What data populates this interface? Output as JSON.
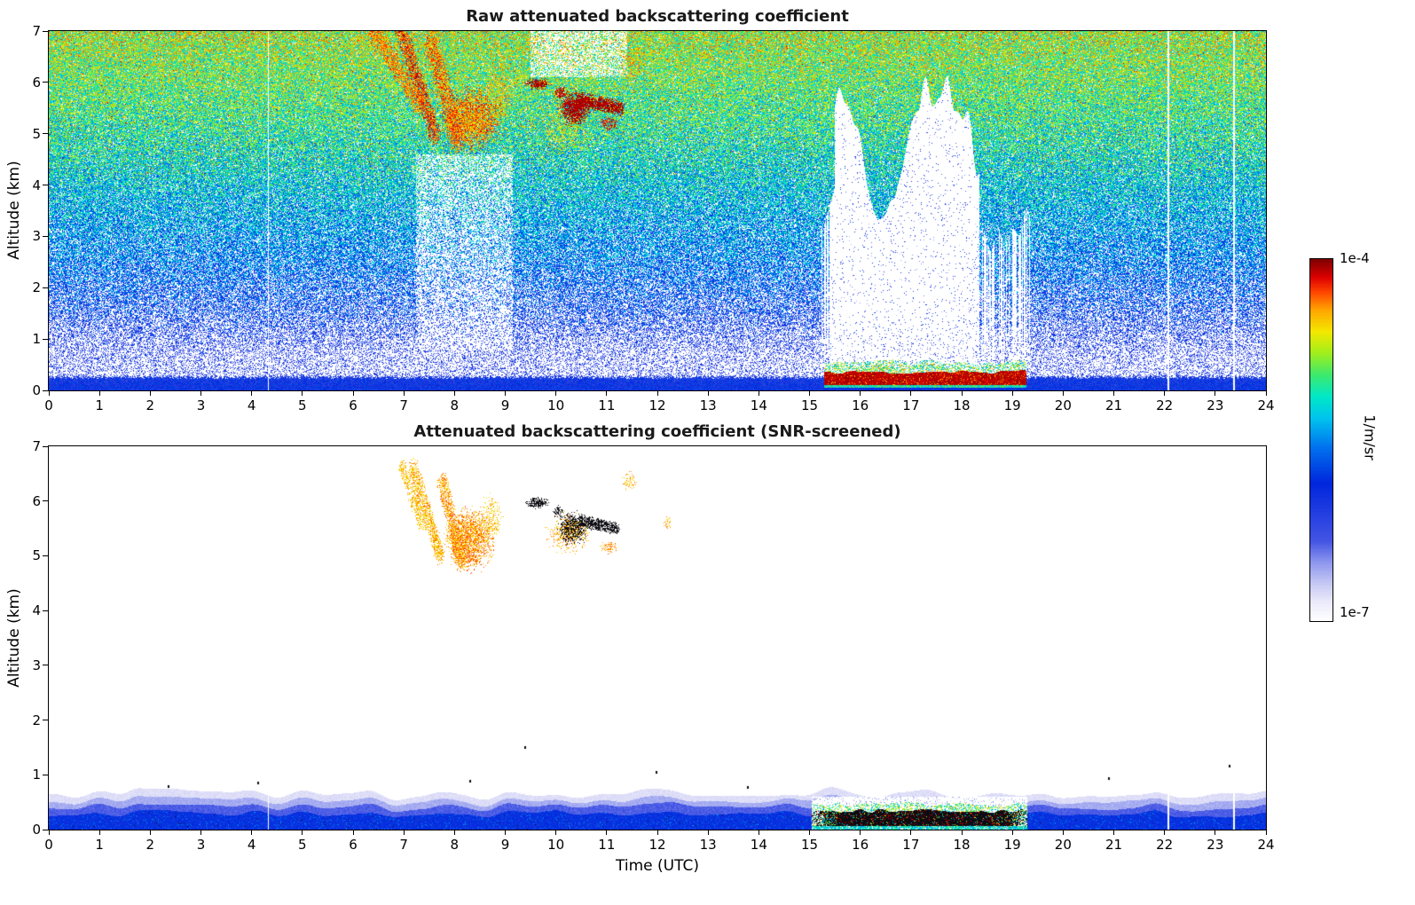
{
  "figure": {
    "background": "#ffffff",
    "colorbar": {
      "label": "1/m/sr",
      "max_label": "1e-4",
      "min_label": "1e-7",
      "stops": [
        [
          0,
          "#ffffff"
        ],
        [
          0.05,
          "#ecebfb"
        ],
        [
          0.1,
          "#c8caf4"
        ],
        [
          0.16,
          "#8e97ee"
        ],
        [
          0.22,
          "#4455e4"
        ],
        [
          0.38,
          "#0026dd"
        ],
        [
          0.48,
          "#0072ee"
        ],
        [
          0.56,
          "#00c3ee"
        ],
        [
          0.62,
          "#00e8c8"
        ],
        [
          0.68,
          "#3ce96e"
        ],
        [
          0.74,
          "#a0ef1c"
        ],
        [
          0.8,
          "#f4e800"
        ],
        [
          0.86,
          "#ffa500"
        ],
        [
          0.91,
          "#ff4400"
        ],
        [
          0.95,
          "#dd0000"
        ],
        [
          1,
          "#7f0000"
        ]
      ]
    }
  },
  "chart_data": [
    {
      "type": "heatmap",
      "title": "Raw attenuated backscattering coefficient",
      "xlabel": "",
      "ylabel": "Altitude (km)",
      "xlim": [
        0,
        24
      ],
      "ylim": [
        0,
        7
      ],
      "xticks": [
        0,
        1,
        2,
        3,
        4,
        5,
        6,
        7,
        8,
        9,
        10,
        11,
        12,
        13,
        14,
        15,
        16,
        17,
        18,
        19,
        20,
        21,
        22,
        23,
        24
      ],
      "yticks": [
        0,
        1,
        2,
        3,
        4,
        5,
        6,
        7
      ],
      "units": "1/m/sr",
      "value_range": [
        "1e-7",
        "1e-4"
      ],
      "legend": "shared colorbar right",
      "render": {
        "seed": 11,
        "style": "raw",
        "gaps": [
          4.33,
          22.08,
          23.37
        ],
        "hot_fleck_p": 0.03,
        "noise_profile": [
          {
            "z": 0.0,
            "p": 1.0,
            "v": 0.36,
            "s": 0.08
          },
          {
            "z": 0.22,
            "p": 1.0,
            "v": 0.34,
            "s": 0.1
          },
          {
            "z": 0.3,
            "p": 0.3,
            "v": 0.28,
            "s": 0.14
          },
          {
            "z": 0.7,
            "p": 0.32,
            "v": 0.28,
            "s": 0.14
          },
          {
            "z": 1.5,
            "p": 0.55,
            "v": 0.38,
            "s": 0.16
          },
          {
            "z": 2.5,
            "p": 0.72,
            "v": 0.47,
            "s": 0.16
          },
          {
            "z": 4.0,
            "p": 0.86,
            "v": 0.57,
            "s": 0.16
          },
          {
            "z": 5.5,
            "p": 0.94,
            "v": 0.66,
            "s": 0.17
          },
          {
            "z": 7.0,
            "p": 0.97,
            "v": 0.74,
            "s": 0.18
          }
        ],
        "shadows": [
          {
            "t0": 7.25,
            "t1": 9.15,
            "z0": 0.8,
            "z1": 4.6,
            "f": 0.55
          },
          {
            "t0": 9.5,
            "t1": 11.4,
            "z0": 6.1,
            "z1": 7.0,
            "f": 0.5
          }
        ],
        "attenuation": {
          "t0": 15.2,
          "t1": 19.35,
          "t_full0": 15.5,
          "t_full1": 18.35,
          "z_base": 0.42,
          "h_min": 2.6,
          "h_max": 6.4
        },
        "low_cloud": {
          "t0": 15.28,
          "t1": 19.28,
          "z_core0": 0.1,
          "z_core1": 0.32,
          "z_top": 0.44
        },
        "features": [
          {
            "kind": "streak",
            "x0": 6.38,
            "y0": 7.05,
            "x1": 7.28,
            "y1": 5.62,
            "w": 0.26,
            "v0": 0.8,
            "v1": 0.95,
            "d": 0.7
          },
          {
            "kind": "streak",
            "x0": 6.95,
            "y0": 7.0,
            "x1": 7.6,
            "y1": 5.05,
            "w": 0.24,
            "v0": 0.84,
            "v1": 1.0,
            "d": 0.75
          },
          {
            "kind": "streak",
            "x0": 7.55,
            "y0": 6.7,
            "x1": 8.05,
            "y1": 4.95,
            "w": 0.3,
            "v0": 0.8,
            "v1": 0.97,
            "d": 0.78
          },
          {
            "kind": "blob",
            "cx": 8.35,
            "cy": 5.3,
            "rx": 0.55,
            "ry": 0.52,
            "v0": 0.78,
            "v1": 0.97,
            "d": 0.85
          },
          {
            "kind": "blob",
            "cx": 8.9,
            "cy": 5.75,
            "rx": 0.25,
            "ry": 0.45,
            "v0": 0.75,
            "v1": 0.9,
            "d": 0.45
          },
          {
            "kind": "blob",
            "cx": 9.3,
            "cy": 6.1,
            "rx": 0.15,
            "ry": 0.2,
            "v0": 0.72,
            "v1": 0.88,
            "d": 0.35
          },
          {
            "kind": "blob",
            "cx": 9.63,
            "cy": 5.97,
            "rx": 0.22,
            "ry": 0.1,
            "v0": 0.95,
            "v1": 1.0,
            "d": 0.9
          },
          {
            "kind": "blob",
            "cx": 10.08,
            "cy": 5.8,
            "rx": 0.12,
            "ry": 0.12,
            "v0": 0.92,
            "v1": 1.0,
            "d": 0.8
          },
          {
            "kind": "blob",
            "cx": 10.36,
            "cy": 5.5,
            "rx": 0.28,
            "ry": 0.3,
            "v0": 0.95,
            "v1": 1.0,
            "d": 0.9
          },
          {
            "kind": "streak",
            "x0": 10.5,
            "y0": 5.65,
            "x1": 11.28,
            "y1": 5.5,
            "w": 0.14,
            "v0": 0.95,
            "v1": 1.0,
            "d": 0.85
          },
          {
            "kind": "blob",
            "cx": 11.05,
            "cy": 5.2,
            "rx": 0.18,
            "ry": 0.12,
            "v0": 0.9,
            "v1": 1.0,
            "d": 0.6
          },
          {
            "kind": "blob",
            "cx": 10.15,
            "cy": 5.05,
            "rx": 0.5,
            "ry": 0.4,
            "v0": 0.72,
            "v1": 0.88,
            "d": 0.3
          },
          {
            "kind": "blob",
            "cx": 11.5,
            "cy": 6.35,
            "rx": 0.22,
            "ry": 0.3,
            "v0": 0.75,
            "v1": 0.92,
            "d": 0.4
          }
        ]
      }
    },
    {
      "type": "heatmap",
      "title": "Attenuated backscattering coefficient (SNR-screened)",
      "xlabel": "Time (UTC)",
      "ylabel": "Altitude (km)",
      "xlim": [
        0,
        24
      ],
      "ylim": [
        0,
        7
      ],
      "xticks": [
        0,
        1,
        2,
        3,
        4,
        5,
        6,
        7,
        8,
        9,
        10,
        11,
        12,
        13,
        14,
        15,
        16,
        17,
        18,
        19,
        20,
        21,
        22,
        23,
        24
      ],
      "yticks": [
        0,
        1,
        2,
        3,
        4,
        5,
        6,
        7
      ],
      "units": "1/m/sr",
      "value_range": [
        "1e-7",
        "1e-4"
      ],
      "legend": "shared colorbar right",
      "render": {
        "seed": 77,
        "style": "screened",
        "gaps": [
          4.33,
          22.08,
          23.37
        ],
        "boundary_layer": {
          "core_z": 0.22,
          "core_amp": 0.14,
          "core_v": 0.36
        },
        "low_cloud": {
          "t0": 15.05,
          "t1": 19.3,
          "z_core0": 0.06,
          "z_core1": 0.3,
          "z_top": 0.42
        },
        "specks": [
          [
            9.38,
            1.52
          ],
          [
            11.97,
            1.06
          ],
          [
            2.35,
            0.8
          ],
          [
            8.3,
            0.9
          ],
          [
            13.78,
            0.78
          ],
          [
            23.28,
            1.18
          ],
          [
            4.12,
            0.86
          ],
          [
            20.9,
            0.95
          ]
        ],
        "features": [
          {
            "kind": "streak",
            "x0": 6.98,
            "y0": 6.6,
            "x1": 7.35,
            "y1": 5.6,
            "w": 0.16,
            "v0": 0.79,
            "v1": 0.88,
            "d": 0.5
          },
          {
            "kind": "streak",
            "x0": 7.2,
            "y0": 6.55,
            "x1": 7.7,
            "y1": 5.05,
            "w": 0.2,
            "v0": 0.79,
            "v1": 0.9,
            "d": 0.6
          },
          {
            "kind": "streak",
            "x0": 7.78,
            "y0": 6.3,
            "x1": 8.12,
            "y1": 4.95,
            "w": 0.22,
            "v0": 0.8,
            "v1": 0.92,
            "d": 0.65
          },
          {
            "kind": "blob",
            "cx": 8.3,
            "cy": 5.3,
            "rx": 0.42,
            "ry": 0.5,
            "v0": 0.8,
            "v1": 0.93,
            "d": 0.7
          },
          {
            "kind": "blob",
            "cx": 8.72,
            "cy": 5.7,
            "rx": 0.2,
            "ry": 0.35,
            "v0": 0.78,
            "v1": 0.88,
            "d": 0.35
          },
          {
            "kind": "blob",
            "cx": 10.25,
            "cy": 5.4,
            "rx": 0.38,
            "ry": 0.32,
            "v0": 0.8,
            "v1": 0.9,
            "d": 0.3
          },
          {
            "kind": "blob",
            "cx": 9.63,
            "cy": 5.97,
            "rx": 0.2,
            "ry": 0.09,
            "black": true,
            "d": 0.85
          },
          {
            "kind": "blob",
            "cx": 10.05,
            "cy": 5.8,
            "rx": 0.1,
            "ry": 0.1,
            "black": true,
            "d": 0.7
          },
          {
            "kind": "blob",
            "cx": 10.33,
            "cy": 5.5,
            "rx": 0.25,
            "ry": 0.27,
            "black": true,
            "d": 0.85
          },
          {
            "kind": "streak",
            "x0": 10.5,
            "y0": 5.63,
            "x1": 11.2,
            "y1": 5.5,
            "w": 0.11,
            "black": true,
            "d": 0.8
          },
          {
            "kind": "blob",
            "cx": 11.05,
            "cy": 5.15,
            "rx": 0.15,
            "ry": 0.1,
            "v0": 0.82,
            "v1": 0.92,
            "d": 0.45
          },
          {
            "kind": "blob",
            "cx": 11.45,
            "cy": 6.35,
            "rx": 0.12,
            "ry": 0.16,
            "v0": 0.8,
            "v1": 0.9,
            "d": 0.4
          },
          {
            "kind": "blob",
            "cx": 12.2,
            "cy": 5.6,
            "rx": 0.07,
            "ry": 0.1,
            "v0": 0.8,
            "v1": 0.9,
            "d": 0.5
          }
        ]
      }
    }
  ]
}
